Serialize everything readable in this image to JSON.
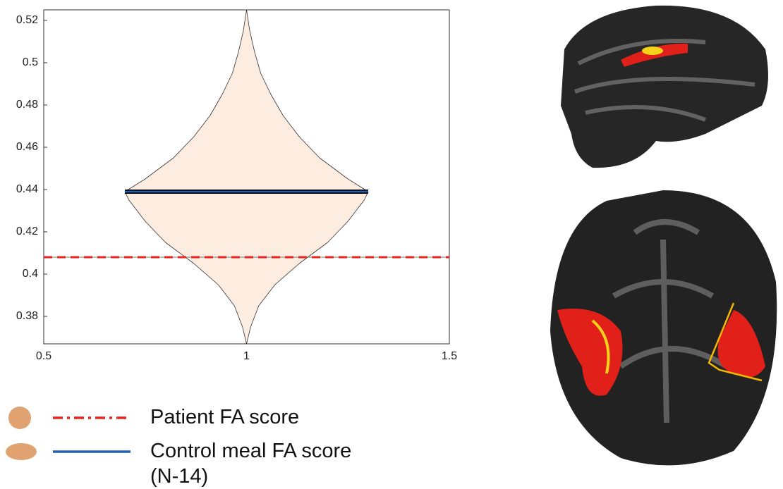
{
  "chart_data": {
    "type": "violin",
    "xlim": [
      0.5,
      1.5
    ],
    "xticks": [
      0.5,
      1,
      1.5
    ],
    "ylim": [
      0.367,
      0.525
    ],
    "yticks": [
      0.38,
      0.4,
      0.42,
      0.44,
      0.46,
      0.48,
      0.5,
      0.52
    ],
    "violin_center": 1,
    "violin_y": [
      0.367,
      0.375,
      0.385,
      0.395,
      0.405,
      0.415,
      0.425,
      0.435,
      0.439,
      0.445,
      0.455,
      0.465,
      0.475,
      0.485,
      0.495,
      0.505,
      0.515,
      0.525
    ],
    "violin_halfwidth": [
      0,
      0.01,
      0.03,
      0.07,
      0.13,
      0.2,
      0.25,
      0.29,
      0.3,
      0.25,
      0.18,
      0.13,
      0.09,
      0.06,
      0.035,
      0.02,
      0.008,
      0
    ],
    "violin_color": "#fdece0",
    "series": [
      {
        "name": "Patient FA score",
        "color": "#e8251f",
        "values": [
          0.408
        ]
      },
      {
        "name": "Control meal FA score (N-14)",
        "color": "#1f5fb4",
        "values": [
          0.439
        ]
      }
    ]
  }
}
